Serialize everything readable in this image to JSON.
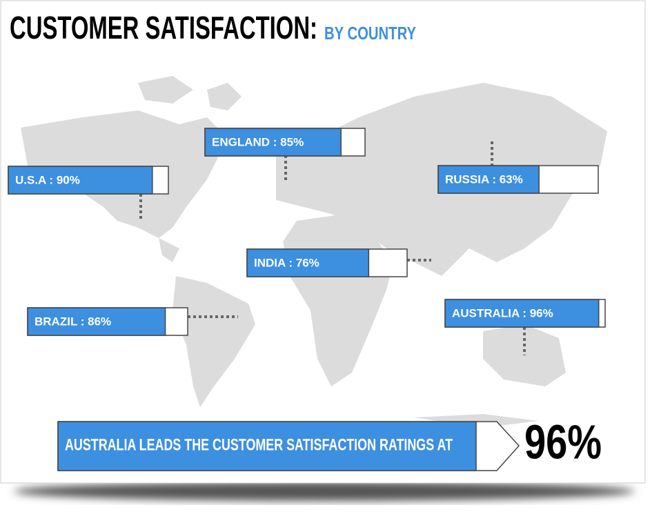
{
  "title": "CUSTOMER SATISFACTION:",
  "subtitle": "BY COUNTRY",
  "countries": [
    {
      "label": "ENGLAND : 85%",
      "value": 85
    },
    {
      "label": "U.S.A : 90%",
      "value": 90
    },
    {
      "label": "RUSSIA : 63%",
      "value": 63
    },
    {
      "label": "INDIA : 76%",
      "value": 76
    },
    {
      "label": "BRAZIL : 86%",
      "value": 86
    },
    {
      "label": "AUSTRALIA : 96%",
      "value": 96
    }
  ],
  "callout": {
    "text": "AUSTRALIA LEADS THE CUSTOMER SATISFACTION RATINGS AT",
    "value": "96%"
  }
}
